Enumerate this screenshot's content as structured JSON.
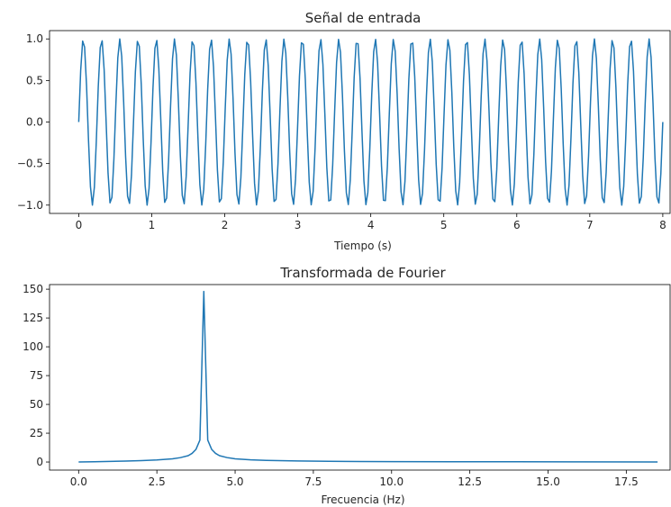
{
  "chart_data": [
    {
      "type": "line",
      "title": "Señal de entrada",
      "xlabel": "Tiempo (s)",
      "ylabel": "",
      "xlim": [
        -0.4,
        8.1
      ],
      "ylim": [
        -1.1,
        1.1
      ],
      "xticks": [
        0,
        1,
        2,
        3,
        4,
        5,
        6,
        7,
        8
      ],
      "xtick_labels": [
        "0",
        "1",
        "2",
        "3",
        "4",
        "5",
        "6",
        "7",
        "8"
      ],
      "yticks": [
        1.0,
        0.5,
        0.0,
        -0.5,
        -1.0
      ],
      "ytick_labels": [
        "1.0",
        "0.5",
        "0.0",
        "−0.5",
        "−1.0"
      ],
      "grid": false,
      "series": [
        {
          "color": "#1f77b4",
          "function": "sin(2*pi*4*t)",
          "t_start": 0,
          "t_end": 8,
          "samples": 300
        }
      ]
    },
    {
      "type": "line",
      "title": "Transformada de Fourier",
      "xlabel": "Frecuencia (Hz)",
      "ylabel": "",
      "xlim": [
        -0.93,
        18.9
      ],
      "ylim": [
        -7,
        154
      ],
      "xticks": [
        0,
        2.5,
        5,
        7.5,
        10,
        12.5,
        15,
        17.5
      ],
      "xtick_labels": [
        "0.0",
        "2.5",
        "5.0",
        "7.5",
        "10.0",
        "12.5",
        "15.0",
        "17.5"
      ],
      "yticks": [
        0,
        25,
        50,
        75,
        100,
        125,
        150
      ],
      "ytick_labels": [
        "0",
        "25",
        "50",
        "75",
        "100",
        "125",
        "150"
      ],
      "grid": false,
      "series": [
        {
          "color": "#1f77b4",
          "x": [
            0,
            0.5,
            1,
            1.5,
            2,
            2.5,
            3,
            3.25,
            3.5,
            3.625,
            3.75,
            3.875,
            4.0,
            4.125,
            4.25,
            4.375,
            4.5,
            4.75,
            5.0,
            5.5,
            6,
            7,
            8,
            9,
            10,
            12,
            14,
            16,
            18.5
          ],
          "y": [
            0.0,
            0.2,
            0.5,
            0.8,
            1.2,
            1.8,
            2.8,
            3.8,
            5.5,
            7.5,
            11,
            19,
            148,
            19,
            11,
            7.5,
            5.5,
            3.8,
            2.8,
            1.9,
            1.4,
            0.9,
            0.6,
            0.45,
            0.35,
            0.25,
            0.18,
            0.12,
            0.05
          ]
        }
      ]
    }
  ]
}
